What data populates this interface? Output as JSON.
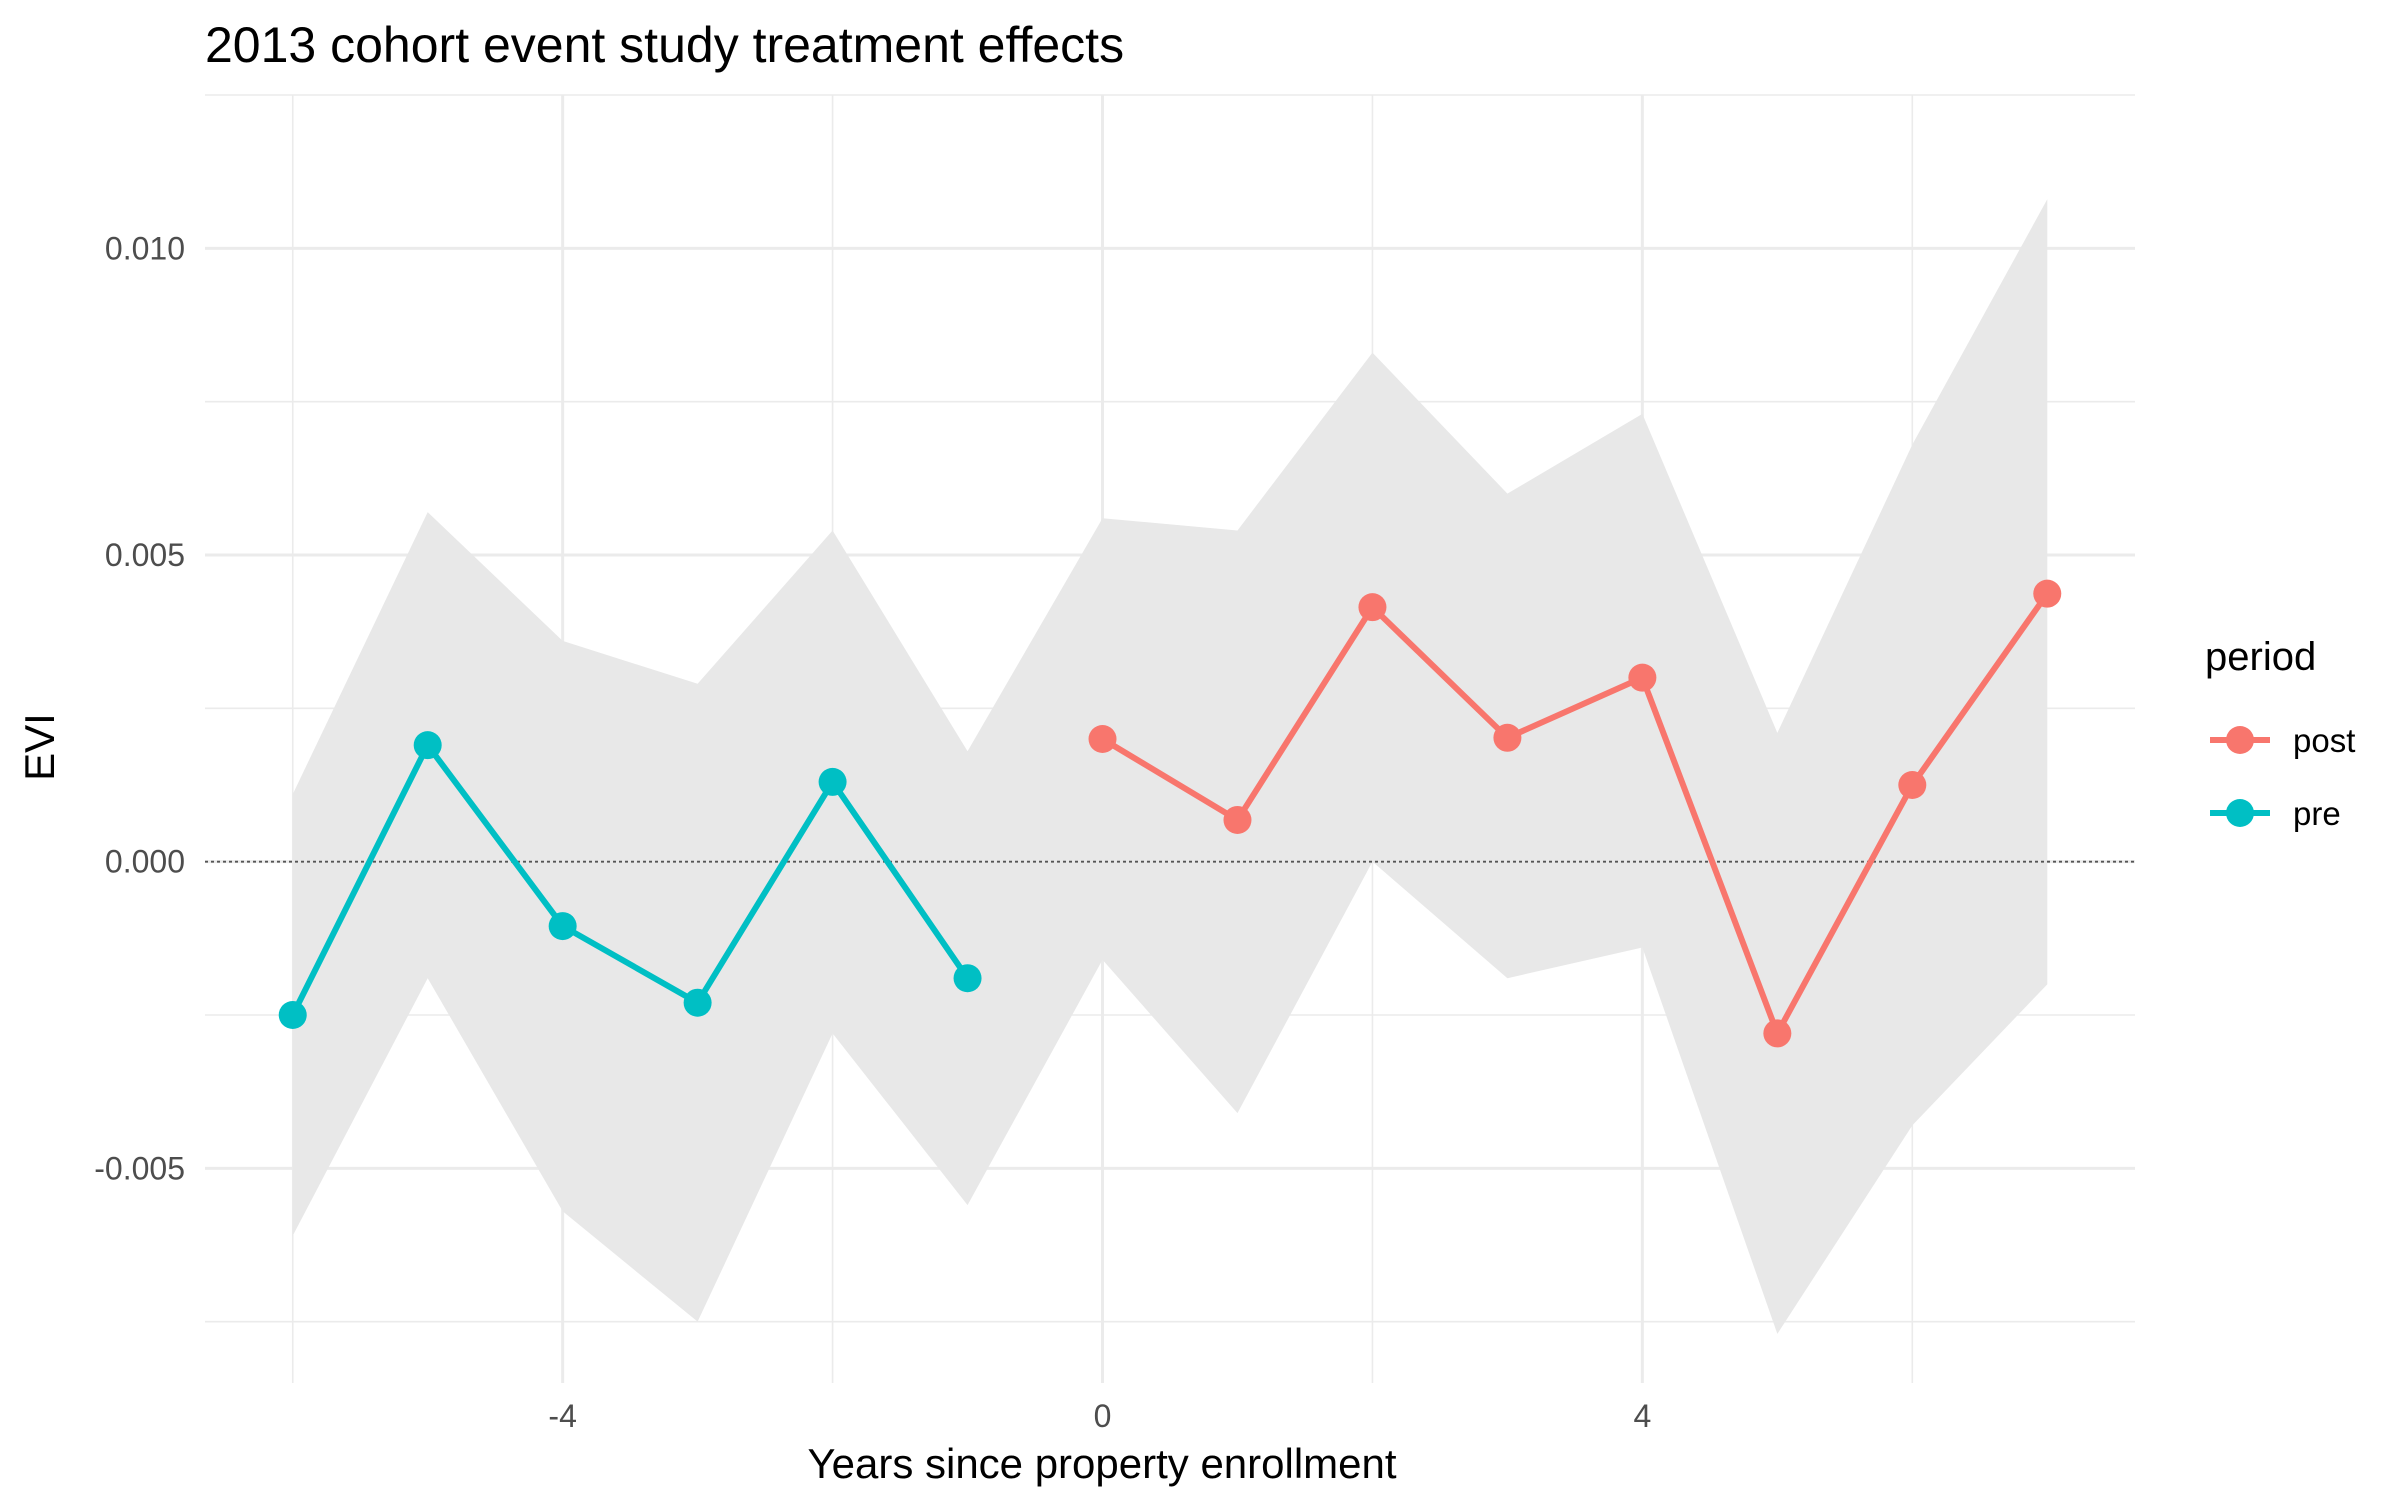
{
  "chart_data": {
    "type": "line",
    "title": "2013 cohort event study treatment effects",
    "xlabel": "Years since property enrollment",
    "ylabel": "EVI",
    "xlim": [
      -6.65,
      7.65
    ],
    "ylim": [
      -0.0085,
      0.0125
    ],
    "x_ticks": [
      -4,
      0,
      4
    ],
    "x_tick_labels": [
      "-4",
      "0",
      "4"
    ],
    "y_ticks": [
      -0.005,
      0,
      0.005,
      0.01
    ],
    "y_tick_labels": [
      "-0.005",
      "0.000",
      "0.005",
      "0.010"
    ],
    "reference_line": {
      "y": 0,
      "style": "dotted"
    },
    "legend": {
      "title": "period",
      "position": "right"
    },
    "grid": true,
    "band": {
      "color": "#e8e8e8",
      "x": [
        -6,
        -5,
        -4,
        -3,
        -2,
        -1,
        0,
        1,
        2,
        3,
        4,
        5,
        6,
        7
      ],
      "lower": [
        -0.0061,
        -0.0019,
        -0.0057,
        -0.0075,
        -0.0028,
        -0.0056,
        -0.0016,
        -0.0041,
        0.0,
        -0.0019,
        -0.0014,
        -0.0077,
        -0.0043,
        -0.002
      ],
      "upper": [
        0.0011,
        0.0057,
        0.0036,
        0.0029,
        0.0054,
        0.0018,
        0.0056,
        0.0054,
        0.0083,
        0.006,
        0.0073,
        0.0021,
        0.0068,
        0.0108
      ]
    },
    "series": [
      {
        "name": "post",
        "color": "#f8766d",
        "x": [
          0,
          1,
          2,
          3,
          4,
          5,
          6,
          7
        ],
        "y": [
          0.002,
          0.00068,
          0.00415,
          0.00202,
          0.003,
          -0.0028,
          0.00125,
          0.00437
        ]
      },
      {
        "name": "pre",
        "color": "#00bfc4",
        "x": [
          -6,
          -5,
          -4,
          -3,
          -2,
          -1
        ],
        "y": [
          -0.0025,
          0.0019,
          -0.00105,
          -0.0023,
          0.0013,
          -0.0019
        ]
      }
    ]
  }
}
